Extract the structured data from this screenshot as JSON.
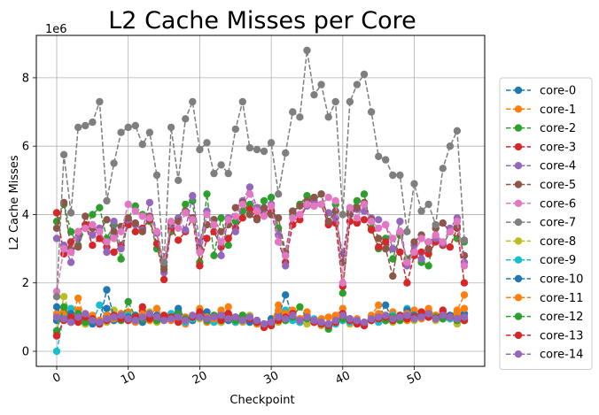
{
  "chart_data": {
    "type": "line",
    "title": "L2 Cache Misses per Core",
    "xlabel": "Checkpoint",
    "ylabel": "L2 Cache Misses",
    "y_offset_label": "1e6",
    "xlim": [
      -2.85,
      59.85
    ],
    "ylim": [
      -0.44,
      9.24
    ],
    "xticks": [
      0,
      10,
      20,
      30,
      40,
      50
    ],
    "yticks": [
      0,
      2,
      4,
      6,
      8
    ],
    "grid": true,
    "legend_position": "right, outside plot",
    "line_style": "dashed with circle markers",
    "x": [
      0,
      1,
      2,
      3,
      4,
      5,
      6,
      7,
      8,
      9,
      10,
      11,
      12,
      13,
      14,
      15,
      16,
      17,
      18,
      19,
      20,
      21,
      22,
      23,
      24,
      25,
      26,
      27,
      28,
      29,
      30,
      31,
      32,
      33,
      34,
      35,
      36,
      37,
      38,
      39,
      40,
      41,
      42,
      43,
      44,
      45,
      46,
      47,
      48,
      49,
      50,
      51,
      52,
      53,
      54,
      55,
      56,
      57
    ],
    "series": [
      {
        "name": "core-0",
        "color": "#1f77b4",
        "values": [
          0.9,
          1.0,
          0.85,
          1.05,
          0.8,
          0.95,
          0.8,
          1.25,
          0.9,
          1.1,
          0.95,
          0.9,
          0.85,
          1.0,
          0.9,
          0.95,
          1.05,
          1.15,
          1.0,
          0.9,
          1.05,
          0.95,
          1.0,
          0.85,
          1.1,
          0.9,
          1.05,
          1.0,
          0.85,
          0.8,
          0.95,
          1.1,
          0.9,
          1.0,
          0.85,
          0.95,
          0.85,
          0.8,
          0.75,
          0.9,
          1.0,
          0.85,
          0.9,
          0.8,
          0.95,
          1.05,
          0.9,
          1.0,
          0.95,
          1.1,
          1.0,
          1.05,
          1.0,
          0.95,
          1.15,
          1.0,
          0.9,
          1.1
        ]
      },
      {
        "name": "core-1",
        "color": "#ff7f0e",
        "values": [
          1.1,
          1.2,
          0.95,
          1.55,
          0.9,
          1.05,
          0.85,
          1.0,
          0.95,
          1.05,
          1.15,
          0.85,
          1.2,
          1.05,
          1.25,
          1.0,
          0.9,
          0.95,
          0.8,
          0.95,
          1.25,
          0.85,
          1.05,
          0.9,
          1.3,
          0.85,
          1.05,
          0.95,
          0.9,
          0.8,
          0.85,
          1.35,
          1.0,
          1.05,
          0.9,
          1.05,
          0.9,
          0.95,
          1.0,
          1.05,
          1.25,
          0.85,
          0.9,
          0.8,
          1.05,
          1.35,
          1.0,
          1.15,
          1.05,
          0.9,
          1.2,
          0.95,
          1.25,
          1.05,
          1.1,
          1.05,
          1.2,
          1.65
        ]
      },
      {
        "name": "core-2",
        "color": "#2ca02c",
        "values": [
          3.8,
          4.3,
          3.5,
          3.1,
          3.6,
          4.0,
          4.2,
          3.3,
          3.7,
          2.7,
          3.9,
          4.25,
          4.0,
          3.8,
          3.0,
          2.5,
          3.5,
          3.9,
          4.3,
          4.4,
          2.6,
          4.6,
          2.8,
          3.9,
          3.1,
          3.8,
          4.1,
          4.3,
          4.2,
          4.4,
          4.5,
          3.6,
          2.8,
          4.0,
          4.3,
          4.55,
          4.4,
          4.6,
          3.8,
          4.3,
          1.7,
          4.1,
          4.4,
          4.6,
          3.6,
          3.0,
          3.3,
          2.7,
          3.4,
          2.7,
          2.9,
          2.6,
          2.5,
          3.6,
          3.1,
          3.5,
          3.3,
          3.2
        ]
      },
      {
        "name": "core-3",
        "color": "#d62728",
        "values": [
          4.05,
          2.85,
          3.2,
          3.5,
          3.7,
          3.1,
          3.3,
          3.05,
          2.9,
          3.1,
          3.7,
          3.5,
          3.6,
          3.85,
          3.15,
          2.1,
          3.6,
          3.25,
          3.5,
          3.9,
          2.5,
          3.3,
          3.5,
          3.05,
          3.3,
          3.6,
          3.9,
          4.15,
          3.9,
          4.0,
          4.1,
          3.2,
          2.6,
          3.7,
          3.85,
          4.3,
          4.25,
          4.3,
          3.7,
          3.75,
          1.9,
          3.8,
          3.75,
          3.85,
          3.55,
          3.05,
          3.2,
          3.0,
          2.9,
          2.0,
          2.8,
          2.9,
          2.85,
          3.2,
          3.1,
          3.05,
          3.6,
          2.0
        ]
      },
      {
        "name": "core-4",
        "color": "#9467bd",
        "values": [
          3.3,
          3.1,
          2.6,
          3.3,
          3.6,
          3.4,
          3.6,
          2.9,
          3.8,
          3.0,
          3.85,
          3.7,
          3.55,
          4.35,
          3.45,
          2.3,
          3.7,
          3.9,
          3.55,
          4.55,
          3.2,
          4.1,
          3.85,
          2.8,
          3.9,
          3.5,
          4.4,
          4.8,
          4.2,
          4.15,
          4.3,
          3.4,
          2.5,
          4.1,
          4.0,
          4.25,
          4.4,
          4.3,
          4.05,
          3.9,
          2.85,
          4.0,
          4.15,
          4.1,
          3.9,
          3.85,
          3.7,
          3.0,
          3.8,
          2.5,
          3.1,
          2.7,
          3.2,
          3.3,
          3.15,
          3.6,
          3.9,
          2.6
        ]
      },
      {
        "name": "core-5",
        "color": "#8c564b",
        "values": [
          3.6,
          4.35,
          3.0,
          3.05,
          3.95,
          3.6,
          3.5,
          3.85,
          3.5,
          3.65,
          3.9,
          3.75,
          3.5,
          3.95,
          3.5,
          2.4,
          3.75,
          3.8,
          4.1,
          3.9,
          3.0,
          3.7,
          3.85,
          3.5,
          3.7,
          4.2,
          4.35,
          4.0,
          3.85,
          4.2,
          4.0,
          3.9,
          2.9,
          4.1,
          4.25,
          4.4,
          4.5,
          4.6,
          3.8,
          4.1,
          2.6,
          4.0,
          4.2,
          4.35,
          3.85,
          3.3,
          3.0,
          2.2,
          3.5,
          2.6,
          3.2,
          3.4,
          3.0,
          3.6,
          3.75,
          3.5,
          3.65,
          2.8
        ]
      },
      {
        "name": "core-6",
        "color": "#e377c2",
        "values": [
          1.75,
          3.0,
          2.9,
          3.5,
          3.6,
          3.7,
          3.5,
          3.2,
          3.3,
          3.5,
          4.3,
          4.1,
          3.95,
          3.9,
          3.5,
          2.6,
          3.8,
          3.6,
          4.05,
          3.85,
          2.9,
          4.0,
          3.7,
          3.2,
          3.85,
          3.95,
          4.3,
          4.6,
          4.1,
          3.95,
          4.25,
          3.2,
          2.8,
          3.9,
          4.0,
          4.3,
          4.25,
          4.3,
          4.5,
          4.4,
          2.0,
          4.2,
          3.9,
          4.3,
          3.8,
          3.6,
          3.7,
          3.3,
          3.5,
          2.6,
          2.9,
          3.3,
          3.2,
          3.4,
          3.2,
          3.5,
          3.8,
          2.5
        ]
      },
      {
        "name": "core-7",
        "color": "#7f7f7f",
        "values": [
          1.6,
          5.75,
          4.05,
          6.55,
          6.6,
          6.7,
          7.3,
          4.4,
          5.5,
          6.4,
          6.55,
          6.6,
          6.05,
          6.4,
          5.15,
          2.6,
          6.55,
          5.0,
          6.8,
          7.3,
          5.9,
          6.1,
          5.2,
          5.45,
          5.2,
          6.5,
          7.3,
          5.95,
          5.9,
          5.85,
          6.1,
          4.6,
          5.8,
          7.0,
          6.85,
          8.8,
          7.5,
          7.8,
          6.85,
          7.3,
          4.0,
          7.3,
          7.8,
          8.1,
          7.0,
          5.7,
          5.6,
          5.15,
          5.15,
          3.5,
          4.9,
          4.1,
          4.3,
          3.7,
          5.35,
          6.0,
          6.45,
          3.25
        ]
      },
      {
        "name": "core-8",
        "color": "#bcbd22",
        "values": [
          0.55,
          1.6,
          1.05,
          1.0,
          0.8,
          0.85,
          0.9,
          0.85,
          1.2,
          0.95,
          1.0,
          1.05,
          0.9,
          1.15,
          0.85,
          1.0,
          0.95,
          0.9,
          0.85,
          1.05,
          0.95,
          0.9,
          1.0,
          0.85,
          1.05,
          0.95,
          0.85,
          1.05,
          0.8,
          0.7,
          0.75,
          0.85,
          1.05,
          0.9,
          0.95,
          0.8,
          0.85,
          0.75,
          0.7,
          0.8,
          0.9,
          0.8,
          0.85,
          0.75,
          0.9,
          1.0,
          0.95,
          0.85,
          0.95,
          1.0,
          0.9,
          1.05,
          1.1,
          0.9,
          1.0,
          0.95,
          0.8,
          0.9
        ]
      },
      {
        "name": "core-9",
        "color": "#17becf",
        "values": [
          0.0,
          1.05,
          1.25,
          0.95,
          1.0,
          0.85,
          1.35,
          0.9,
          1.0,
          0.95,
          1.05,
          0.9,
          0.95,
          1.1,
          0.95,
          1.0,
          1.1,
          1.0,
          0.85,
          0.95,
          1.0,
          0.9,
          0.85,
          0.95,
          1.0,
          0.85,
          0.95,
          1.0,
          0.85,
          0.75,
          0.8,
          1.0,
          1.2,
          0.9,
          0.85,
          1.05,
          0.95,
          0.85,
          0.7,
          0.8,
          0.9,
          0.85,
          0.9,
          0.8,
          0.95,
          0.85,
          0.9,
          1.05,
          1.0,
          1.25,
          1.05,
          1.0,
          1.15,
          1.05,
          1.0,
          0.95,
          1.05,
          0.95
        ]
      },
      {
        "name": "core-10",
        "color": "#1f77b4",
        "values": [
          1.3,
          0.95,
          1.1,
          0.9,
          1.05,
          0.8,
          0.9,
          1.8,
          1.0,
          0.95,
          1.0,
          1.05,
          0.9,
          1.0,
          1.05,
          0.95,
          1.0,
          1.25,
          0.95,
          1.0,
          1.0,
          1.15,
          0.95,
          1.1,
          0.9,
          1.0,
          1.0,
          0.85,
          0.9,
          0.75,
          0.85,
          1.0,
          1.65,
          1.0,
          0.95,
          1.0,
          0.9,
          0.85,
          0.8,
          0.9,
          1.0,
          0.95,
          0.85,
          0.8,
          0.95,
          1.0,
          1.35,
          0.9,
          1.0,
          1.2,
          1.05,
          1.0,
          1.15,
          1.0,
          0.95,
          1.05,
          1.1,
          1.0
        ]
      },
      {
        "name": "core-11",
        "color": "#ff7f0e",
        "values": [
          1.05,
          1.15,
          1.0,
          1.2,
          0.95,
          1.0,
          0.9,
          1.05,
          1.0,
          1.1,
          0.95,
          1.0,
          1.1,
          0.9,
          1.0,
          1.05,
          1.0,
          0.9,
          1.0,
          1.05,
          1.1,
          1.0,
          0.95,
          1.2,
          1.0,
          0.9,
          0.95,
          1.0,
          0.8,
          0.75,
          0.8,
          1.2,
          1.1,
          1.2,
          0.95,
          1.15,
          0.9,
          0.85,
          0.8,
          0.95,
          1.05,
          0.9,
          0.95,
          0.85,
          1.0,
          1.1,
          1.05,
          0.95,
          1.0,
          1.1,
          1.0,
          1.1,
          1.2,
          1.05,
          1.15,
          1.0,
          1.1,
          1.25
        ]
      },
      {
        "name": "core-12",
        "color": "#2ca02c",
        "values": [
          0.6,
          1.3,
          0.95,
          1.1,
          0.85,
          0.9,
          0.8,
          0.95,
          1.0,
          0.9,
          1.45,
          1.0,
          0.95,
          1.05,
          0.9,
          1.0,
          0.95,
          1.1,
          0.95,
          1.0,
          1.0,
          0.9,
          1.05,
          1.0,
          0.95,
          0.9,
          1.05,
          1.0,
          0.85,
          0.75,
          0.8,
          0.95,
          0.9,
          1.0,
          1.3,
          0.95,
          0.85,
          0.8,
          0.65,
          0.85,
          0.95,
          0.9,
          0.85,
          0.8,
          0.9,
          1.0,
          0.9,
          1.0,
          0.9,
          1.0,
          0.95,
          1.1,
          1.05,
          1.0,
          0.95,
          1.0,
          0.9,
          0.95
        ]
      },
      {
        "name": "core-13",
        "color": "#d62728",
        "values": [
          0.45,
          0.9,
          1.0,
          0.85,
          1.0,
          0.95,
          0.8,
          0.9,
          1.05,
          0.95,
          0.9,
          1.0,
          1.3,
          0.95,
          1.0,
          1.05,
          1.0,
          0.85,
          0.9,
          1.0,
          1.15,
          0.95,
          1.0,
          0.9,
          1.1,
          1.0,
          0.9,
          0.95,
          0.85,
          0.7,
          0.75,
          0.9,
          1.0,
          1.1,
          0.9,
          1.0,
          0.85,
          0.8,
          0.75,
          0.85,
          1.1,
          0.9,
          0.8,
          0.75,
          0.9,
          0.95,
          1.0,
          0.9,
          1.05,
          0.95,
          1.0,
          1.15,
          1.0,
          0.95,
          1.2,
          1.0,
          0.95,
          0.9
        ]
      },
      {
        "name": "core-14",
        "color": "#9467bd",
        "values": [
          1.0,
          0.95,
          0.85,
          1.0,
          1.1,
          0.9,
          0.85,
          0.95,
          1.0,
          1.05,
          0.95,
          0.9,
          1.0,
          1.1,
          1.0,
          0.9,
          0.95,
          1.0,
          0.9,
          1.05,
          1.0,
          0.95,
          1.0,
          1.05,
          0.95,
          1.0,
          0.9,
          1.0,
          0.9,
          0.8,
          0.85,
          1.0,
          0.95,
          1.05,
          0.9,
          1.0,
          0.9,
          0.85,
          0.8,
          0.9,
          1.05,
          0.95,
          0.9,
          0.85,
          0.95,
          1.0,
          1.05,
          0.95,
          1.0,
          1.05,
          0.95,
          1.0,
          1.1,
          0.95,
          1.05,
          1.0,
          0.95,
          1.0
        ]
      }
    ]
  }
}
